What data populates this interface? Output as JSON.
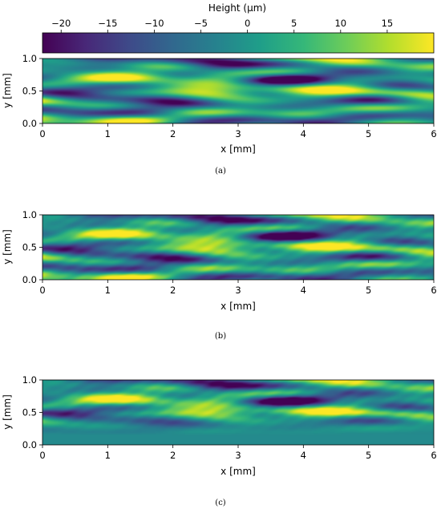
{
  "colorbar": {
    "label": "Height (μm)",
    "colormap": "viridis",
    "range": [
      -22,
      20
    ],
    "ticks": [
      -20,
      -15,
      -10,
      -5,
      0,
      5,
      10,
      15
    ],
    "tick_labels": [
      "−20",
      "−15",
      "−10",
      "−5",
      "0",
      "5",
      "10",
      "15"
    ]
  },
  "chart_data": [
    {
      "type": "heatmap",
      "caption": "(a)",
      "xlabel": "x [mm]",
      "ylabel": "y [mm]",
      "xlim": [
        0,
        6
      ],
      "ylim": [
        0,
        1
      ],
      "xticks": [
        "0",
        "1",
        "2",
        "3",
        "4",
        "5",
        "6"
      ],
      "yticks": [
        "0.0",
        "0.5",
        "1.0"
      ],
      "value_range": [
        -22,
        20
      ],
      "pattern_seed": 11,
      "envelope": "full"
    },
    {
      "type": "heatmap",
      "caption": "(b)",
      "xlabel": "x [mm]",
      "ylabel": "y [mm]",
      "xlim": [
        0,
        6
      ],
      "ylim": [
        0,
        1
      ],
      "xticks": [
        "0",
        "1",
        "2",
        "3",
        "4",
        "5",
        "6"
      ],
      "yticks": [
        "0.0",
        "0.5",
        "1.0"
      ],
      "value_range": [
        -22,
        20
      ],
      "pattern_seed": 11,
      "envelope": "streaked"
    },
    {
      "type": "heatmap",
      "caption": "(c)",
      "xlabel": "x [mm]",
      "ylabel": "y [mm]",
      "xlim": [
        0,
        6
      ],
      "ylim": [
        0,
        1
      ],
      "xticks": [
        "0",
        "1",
        "2",
        "3",
        "4",
        "5",
        "6"
      ],
      "yticks": [
        "0.0",
        "0.5",
        "1.0"
      ],
      "value_range": [
        -22,
        20
      ],
      "pattern_seed": 11,
      "envelope": "upper-band"
    }
  ]
}
